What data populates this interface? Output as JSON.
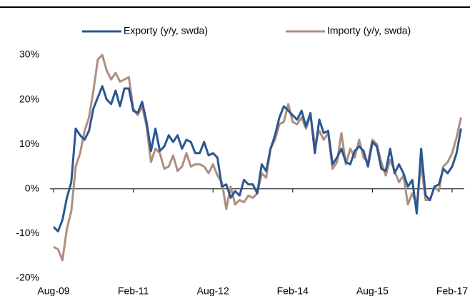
{
  "chart_data": {
    "type": "line",
    "categories": [
      "Aug-09",
      null,
      null,
      null,
      null,
      null,
      null,
      null,
      null,
      null,
      null,
      null,
      null,
      null,
      null,
      null,
      null,
      null,
      "Feb-11",
      null,
      null,
      null,
      null,
      null,
      null,
      null,
      null,
      null,
      null,
      null,
      null,
      null,
      null,
      null,
      null,
      null,
      "Aug-12",
      null,
      null,
      null,
      null,
      null,
      null,
      null,
      null,
      null,
      null,
      null,
      null,
      null,
      null,
      null,
      null,
      null,
      "Feb-14",
      null,
      null,
      null,
      null,
      null,
      null,
      null,
      null,
      null,
      null,
      null,
      null,
      null,
      null,
      null,
      null,
      null,
      "Aug-15",
      null,
      null,
      null,
      null,
      null,
      null,
      null,
      null,
      null,
      null,
      null,
      null,
      null,
      null,
      null,
      null,
      null,
      "Feb-17",
      null,
      null
    ],
    "series": [
      {
        "name": "Exporty (y/y, swda)",
        "color": "#2b5693",
        "values": [
          -8.5,
          -9.5,
          -7,
          -2,
          1.5,
          13.5,
          12,
          11,
          13,
          18,
          20.5,
          23,
          20,
          19,
          22,
          18.5,
          22.5,
          22.5,
          17.5,
          17,
          19.5,
          15,
          8.5,
          13.5,
          8.5,
          9.5,
          12,
          10.5,
          12,
          9,
          11,
          10.5,
          8,
          8,
          10.5,
          7.5,
          8,
          7,
          0.5,
          1,
          -2,
          -0.5,
          -1.5,
          2,
          1,
          1,
          -1,
          5.5,
          4,
          9,
          12,
          16,
          18.5,
          17.5,
          16.5,
          15.5,
          17.5,
          14,
          17,
          8,
          15.5,
          12.5,
          13,
          5.5,
          7,
          9,
          6,
          5.5,
          8.5,
          9.5,
          8.5,
          5,
          10.5,
          9.5,
          4.5,
          4,
          9,
          3.5,
          5.5,
          3.5,
          0.5,
          2,
          -5.5,
          9,
          -1.5,
          -2.5,
          0.5,
          1,
          4.5,
          3.5,
          5,
          8,
          13.5
        ]
      },
      {
        "name": "Importy (y/y, swda)",
        "color": "#ae8f80",
        "values": [
          -13,
          -13.5,
          -16,
          -9,
          -5,
          5,
          8,
          13,
          16,
          22,
          29,
          30,
          26.5,
          24.5,
          26,
          24,
          24.5,
          25,
          18,
          16.5,
          18.5,
          14,
          6,
          9,
          8,
          4.5,
          5,
          7.5,
          4,
          5,
          8,
          5,
          5.5,
          5.5,
          5,
          3.5,
          5.5,
          3,
          1.5,
          -4.5,
          0.5,
          -3.5,
          -2.5,
          -3,
          -1.5,
          -2,
          -1,
          3.5,
          2.5,
          9,
          11,
          14.5,
          15,
          19,
          15,
          14.5,
          16,
          13.5,
          16.5,
          10,
          13,
          11,
          12.5,
          4.5,
          6,
          12.5,
          5.5,
          9,
          7,
          11,
          7,
          6,
          11,
          10,
          6,
          3,
          6.5,
          4,
          1.5,
          3,
          -3.5,
          -1,
          -3.5,
          5.5,
          -2.5,
          -2.5,
          0.5,
          -0.5,
          5,
          6,
          8,
          11.5,
          16
        ]
      }
    ],
    "ylim": [
      -20,
      30
    ],
    "yticks": [
      {
        "value": -20,
        "label": "-20%"
      },
      {
        "value": -10,
        "label": "-10%"
      },
      {
        "value": 0,
        "label": "0%"
      },
      {
        "value": 10,
        "label": "10%"
      },
      {
        "value": 20,
        "label": "20%"
      },
      {
        "value": 30,
        "label": "30%"
      }
    ],
    "grid": false,
    "legend": "top"
  }
}
